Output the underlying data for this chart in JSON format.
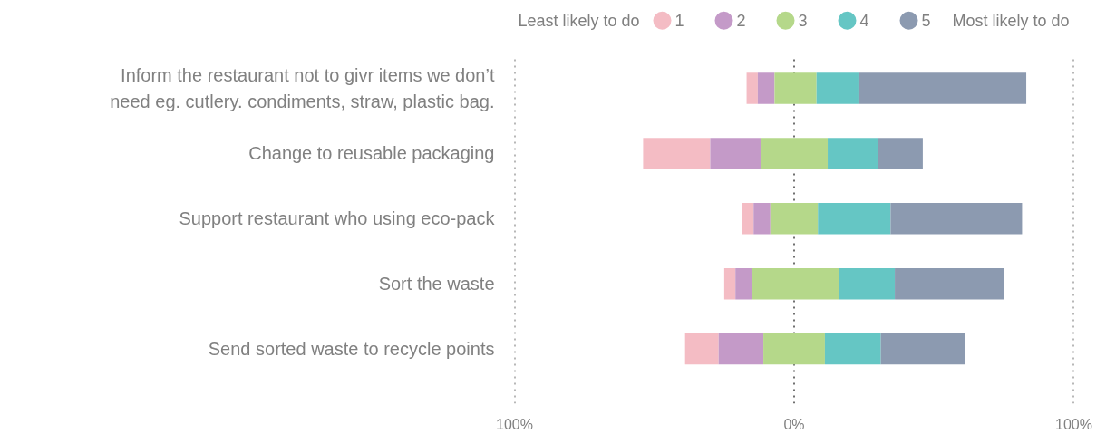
{
  "chart_data": {
    "type": "bar",
    "orientation": "horizontal",
    "categories": [
      "Inform the restaurant not to givr items we don’t need eg. cutlery. condiments, straw, plastic bag.",
      "Change to reusable packaging",
      "Support restaurant who using eco-pack",
      "Sort the waste",
      "Send sorted waste to recycle points"
    ],
    "series": [
      {
        "name": "1",
        "color": "#f4bcc4",
        "values": [
          4,
          24,
          4,
          4,
          12
        ],
        "base": [
          -17,
          -54,
          -18.5,
          -25,
          -39
        ]
      },
      {
        "name": "2",
        "color": "#c49ac8",
        "values": [
          6,
          18,
          6,
          6,
          16
        ],
        "base": [
          -13,
          -30,
          -14.5,
          -21,
          -27
        ]
      },
      {
        "name": "3",
        "color": "#b5d88a",
        "values": [
          15,
          24,
          17,
          31,
          22
        ],
        "base": [
          -7,
          -12,
          -8.5,
          -15,
          -11
        ]
      },
      {
        "name": "4",
        "color": "#65c6c4",
        "values": [
          15,
          18,
          26,
          20,
          20
        ],
        "base": [
          8,
          12,
          8.5,
          16,
          11
        ]
      },
      {
        "name": "5",
        "color": "#8c9ab0",
        "values": [
          60,
          16,
          47,
          39,
          30
        ],
        "base": [
          23,
          30,
          34.5,
          36,
          31
        ]
      }
    ],
    "xlim": [
      -100,
      100
    ],
    "xticks": [
      {
        "value": -100,
        "label": "100%"
      },
      {
        "value": 0,
        "label": "0%"
      },
      {
        "value": 100,
        "label": "100%"
      }
    ],
    "grid": "x",
    "legend": "top",
    "annotations": [
      "Least likely to do",
      "Most likely to do"
    ]
  }
}
